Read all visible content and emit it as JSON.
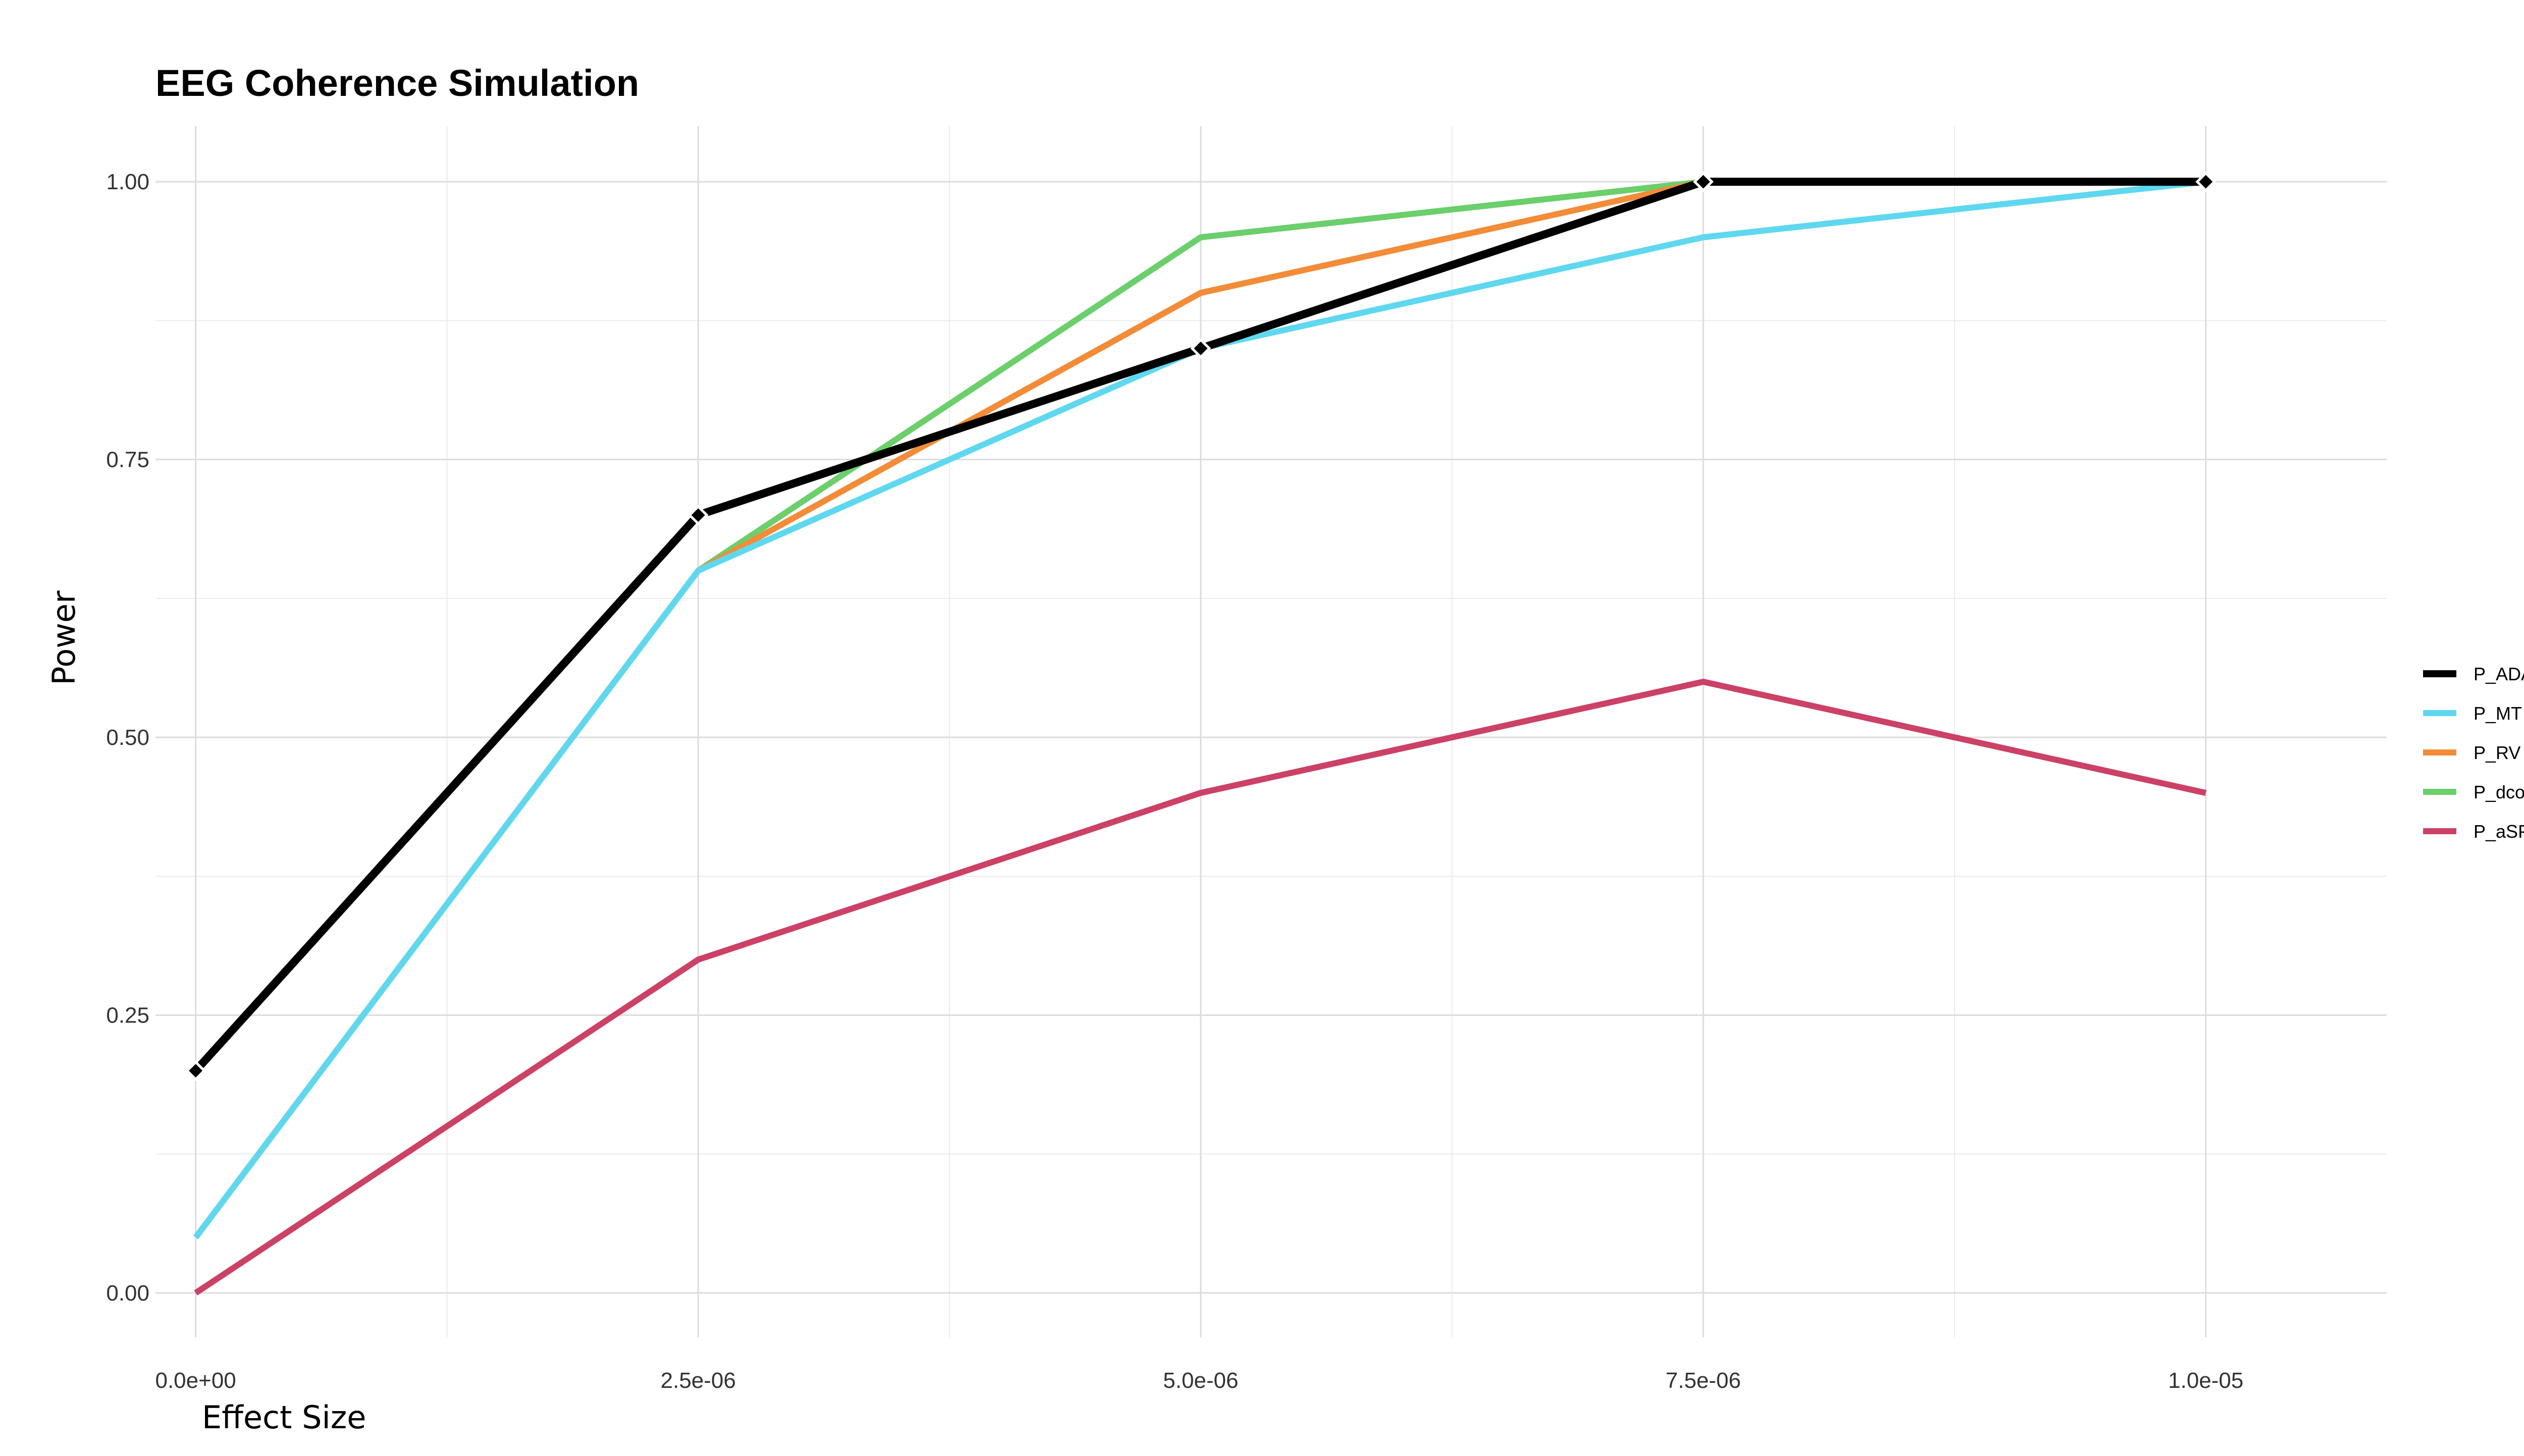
{
  "chart_data": {
    "type": "line",
    "title": "EEG Coherence Simulation",
    "xlabel": "Effect Size",
    "ylabel": "Power",
    "x": [
      0,
      2.5e-06,
      5e-06,
      7.5e-06,
      1e-05
    ],
    "x_tick_labels": [
      "0.0e+00",
      "2.5e-06",
      "5.0e-06",
      "7.5e-06",
      "1.0e-05"
    ],
    "xlim": [
      -2e-07,
      1.09e-05
    ],
    "ylim": [
      -0.04,
      1.05
    ],
    "y_ticks": [
      0,
      0.25,
      0.5,
      0.75,
      1
    ],
    "y_tick_labels": [
      "0.00",
      "0.25",
      "0.50",
      "0.75",
      "1.00"
    ],
    "grid": true,
    "legend_position": "right",
    "series": [
      {
        "name": "P_ADA",
        "color": "#000000",
        "markers": true,
        "values": [
          0.2,
          0.7,
          0.85,
          1.0,
          1.0
        ]
      },
      {
        "name": "P_MT",
        "color": "#5fd8ef",
        "markers": false,
        "values": [
          0.05,
          0.65,
          0.85,
          0.95,
          1.0
        ]
      },
      {
        "name": "P_RV",
        "color": "#f28c38",
        "markers": false,
        "values": [
          0.05,
          0.65,
          0.9,
          1.0,
          1.0
        ]
      },
      {
        "name": "P_dcov",
        "color": "#6bcf6b",
        "markers": false,
        "values": [
          0.05,
          0.65,
          0.95,
          1.0,
          1.0
        ]
      },
      {
        "name": "P_aSPC",
        "color": "#cc4166",
        "markers": false,
        "values": [
          0.0,
          0.3,
          0.45,
          0.55,
          0.45
        ]
      }
    ]
  }
}
